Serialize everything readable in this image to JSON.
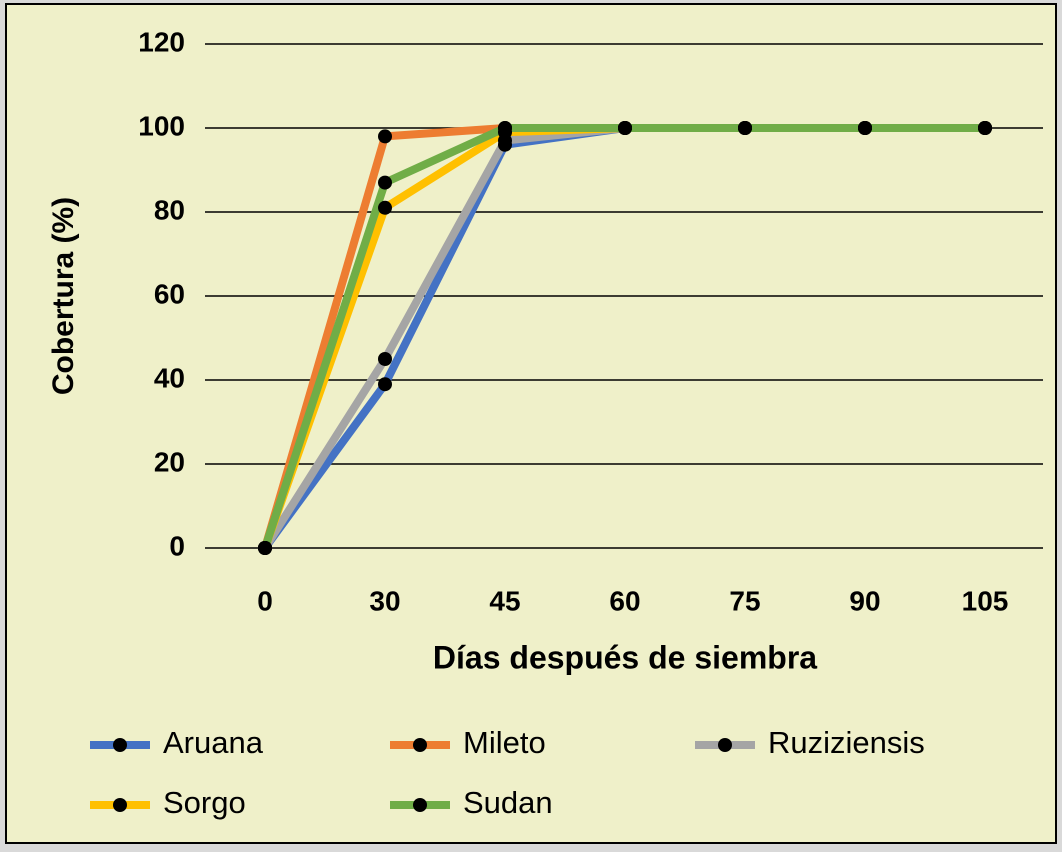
{
  "chart_data": {
    "type": "line",
    "x_label": "Días después de siembra",
    "y_label": "Cobertura (%)",
    "categories": [
      "0",
      "30",
      "45",
      "60",
      "75",
      "90",
      "105"
    ],
    "series": [
      {
        "name": "Aruana",
        "color": "#4472c4",
        "values": [
          0,
          39,
          96,
          100,
          100,
          100,
          100
        ]
      },
      {
        "name": "Mileto",
        "color": "#ed7d31",
        "values": [
          0,
          98,
          100,
          100,
          100,
          100,
          100
        ]
      },
      {
        "name": "Ruziziensis",
        "color": "#a5a5a5",
        "values": [
          0,
          45,
          97,
          100,
          100,
          100,
          100
        ]
      },
      {
        "name": "Sorgo",
        "color": "#ffc000",
        "values": [
          0,
          81,
          99,
          100,
          100,
          100,
          100
        ]
      },
      {
        "name": "Sudan",
        "color": "#70ad47",
        "values": [
          0,
          87,
          100,
          100,
          100,
          100,
          100
        ]
      }
    ],
    "ylim": [
      0,
      120
    ],
    "yticks": [
      0,
      20,
      40,
      60,
      80,
      100,
      120
    ],
    "grid": true,
    "legend": "bottom"
  }
}
